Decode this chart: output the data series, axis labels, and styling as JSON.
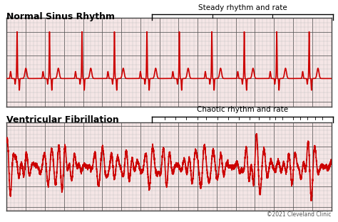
{
  "title1": "Normal Sinus Rhythm",
  "title2": "Ventricular Fibrillation",
  "annotation1": "Steady rhythm and rate",
  "annotation2": "Chaotic rhythm and rate",
  "copyright": "©2021 Cleveland Clinic",
  "bg_color": "#ffffff",
  "grid_color": "#b0b0b0",
  "grid_major_color": "#555555",
  "ecg_color": "#cc0000",
  "title_color": "#000000",
  "annotation_color": "#000000"
}
